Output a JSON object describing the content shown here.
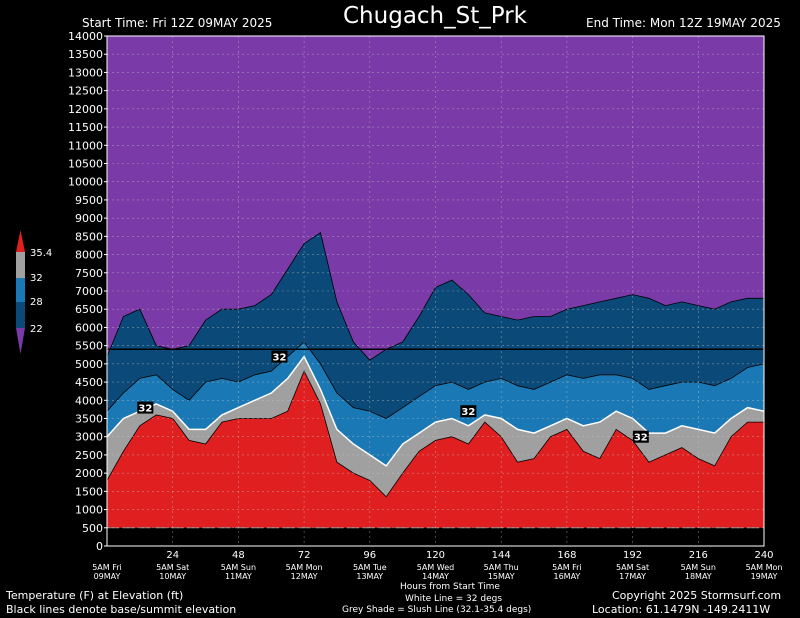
{
  "header": {
    "title": "Chugach_St_Prk",
    "start_time": "Start Time: Fri 12Z 09MAY 2025",
    "end_time": "End Time: Mon 12Z 19MAY 2025"
  },
  "footer": {
    "left_line1": "Temperature (F) at Elevation (ft)",
    "left_line2": "Black lines denote base/summit elevation",
    "center_line1": "Hours from Start Time",
    "center_line2": "White Line = 32 degs",
    "center_line3": "Grey Shade = Slush Line (32.1-35.4 degs)",
    "right_line1": "Copyright 2025 Stormsurf.com",
    "right_line2": "Location: 61.1479N  -149.2411W"
  },
  "legend": {
    "labels": [
      "35.4",
      "32",
      "28",
      "22"
    ],
    "colors": [
      "#e02020",
      "#a0a0a0",
      "#1a78b4",
      "#0b4a78",
      "#7a3aa8"
    ]
  },
  "chart_data": {
    "type": "heatmap",
    "title": "Chugach_St_Prk",
    "xlabel": "Hours from Start Time",
    "ylabel": "Elevation (ft)",
    "xlim": [
      0,
      240
    ],
    "ylim": [
      0,
      14000
    ],
    "grid": true,
    "y_ticks": [
      0,
      500,
      1000,
      1500,
      2000,
      2500,
      3000,
      3500,
      4000,
      4500,
      5000,
      5500,
      6000,
      6500,
      7000,
      7500,
      8000,
      8500,
      9000,
      9500,
      10000,
      10500,
      11000,
      11500,
      12000,
      12500,
      13000,
      13500,
      14000
    ],
    "x_ticks": [
      24,
      48,
      72,
      96,
      120,
      144,
      168,
      192,
      216,
      240
    ],
    "day_labels": [
      {
        "hour": 0,
        "line1": "5AM Fri",
        "line2": "09MAY"
      },
      {
        "hour": 24,
        "line1": "5AM Sat",
        "line2": "10MAY"
      },
      {
        "hour": 48,
        "line1": "5AM Sun",
        "line2": "11MAY"
      },
      {
        "hour": 72,
        "line1": "5AM Mon",
        "line2": "12MAY"
      },
      {
        "hour": 96,
        "line1": "5AM Tue",
        "line2": "13MAY"
      },
      {
        "hour": 120,
        "line1": "5AM Wed",
        "line2": "14MAY"
      },
      {
        "hour": 144,
        "line1": "5AM Thu",
        "line2": "15MAY"
      },
      {
        "hour": 168,
        "line1": "5AM Fri",
        "line2": "16MAY"
      },
      {
        "hour": 192,
        "line1": "5AM Sat",
        "line2": "17MAY"
      },
      {
        "hour": 216,
        "line1": "5AM Sun",
        "line2": "18MAY"
      },
      {
        "hour": 240,
        "line1": "5AM Mon",
        "line2": "19MAY"
      }
    ],
    "base_elevation": 500,
    "summit_elevation": 5400,
    "hours": [
      0,
      6,
      12,
      18,
      24,
      30,
      36,
      42,
      48,
      54,
      60,
      66,
      72,
      78,
      84,
      90,
      96,
      102,
      108,
      114,
      120,
      126,
      132,
      138,
      144,
      150,
      156,
      162,
      168,
      174,
      180,
      186,
      192,
      198,
      204,
      210,
      216,
      222,
      228,
      234,
      240
    ],
    "series": [
      {
        "name": "35.4",
        "color": "#e02020",
        "values": [
          1800,
          2600,
          3300,
          3600,
          3500,
          2900,
          2800,
          3400,
          3500,
          3500,
          3500,
          3700,
          4800,
          3900,
          2300,
          2000,
          1800,
          1350,
          2000,
          2600,
          2900,
          3000,
          2800,
          3400,
          3000,
          2300,
          2400,
          3000,
          3200,
          2600,
          2400,
          3200,
          2900,
          2300,
          2500,
          2700,
          2400,
          2200,
          3000,
          3400,
          3400
        ]
      },
      {
        "name": "32",
        "color": "#a0a0a0",
        "values": [
          3000,
          3500,
          3700,
          3900,
          3700,
          3200,
          3200,
          3600,
          3800,
          4000,
          4200,
          4600,
          5200,
          4300,
          3200,
          2800,
          2500,
          2200,
          2800,
          3100,
          3400,
          3500,
          3300,
          3600,
          3500,
          3200,
          3100,
          3300,
          3500,
          3300,
          3400,
          3700,
          3500,
          3100,
          3100,
          3300,
          3200,
          3100,
          3500,
          3800,
          3700
        ]
      },
      {
        "name": "28",
        "color": "#1a78b4",
        "values": [
          3700,
          4200,
          4600,
          4700,
          4300,
          4000,
          4500,
          4600,
          4500,
          4700,
          4800,
          5200,
          5600,
          5000,
          4200,
          3800,
          3700,
          3500,
          3800,
          4100,
          4400,
          4500,
          4300,
          4500,
          4600,
          4400,
          4300,
          4500,
          4700,
          4600,
          4700,
          4700,
          4600,
          4300,
          4400,
          4500,
          4500,
          4400,
          4600,
          4900,
          5000
        ]
      },
      {
        "name": "22",
        "color": "#0b4a78",
        "values": [
          5200,
          6300,
          6500,
          5500,
          5400,
          5500,
          6200,
          6500,
          6500,
          6600,
          6900,
          7600,
          8300,
          8600,
          6700,
          5600,
          5100,
          5400,
          5600,
          6300,
          7100,
          7300,
          6900,
          6400,
          6300,
          6200,
          6300,
          6300,
          6500,
          6600,
          6700,
          6800,
          6900,
          6800,
          6600,
          6700,
          6600,
          6500,
          6700,
          6800,
          6800
        ]
      }
    ],
    "top_color": "#7a3aa8",
    "ground_color": "#000000",
    "labels_32": [
      {
        "hour": 14,
        "elev": 3800,
        "text": "32"
      },
      {
        "hour": 63,
        "elev": 5200,
        "text": "32"
      },
      {
        "hour": 132,
        "elev": 3700,
        "text": "32"
      },
      {
        "hour": 195,
        "elev": 3000,
        "text": "32"
      }
    ]
  }
}
